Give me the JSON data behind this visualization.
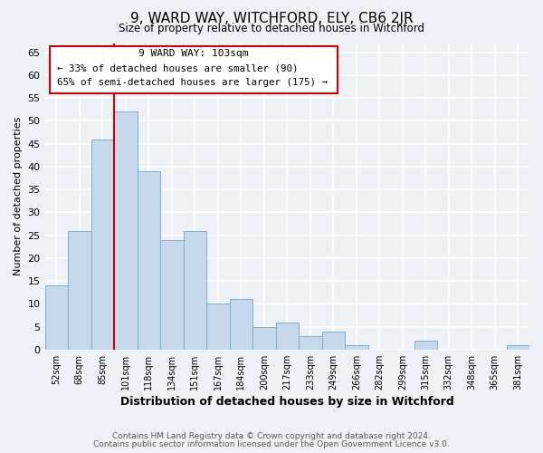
{
  "title": "9, WARD WAY, WITCHFORD, ELY, CB6 2JR",
  "subtitle": "Size of property relative to detached houses in Witchford",
  "xlabel": "Distribution of detached houses by size in Witchford",
  "ylabel": "Number of detached properties",
  "categories": [
    "52sqm",
    "68sqm",
    "85sqm",
    "101sqm",
    "118sqm",
    "134sqm",
    "151sqm",
    "167sqm",
    "184sqm",
    "200sqm",
    "217sqm",
    "233sqm",
    "249sqm",
    "266sqm",
    "282sqm",
    "299sqm",
    "315sqm",
    "332sqm",
    "348sqm",
    "365sqm",
    "381sqm"
  ],
  "values": [
    14,
    26,
    46,
    52,
    39,
    24,
    26,
    10,
    11,
    5,
    6,
    3,
    4,
    1,
    0,
    0,
    2,
    0,
    0,
    0,
    1
  ],
  "bar_color": "#c5d8ec",
  "bar_edge_color": "#7aafd4",
  "ylim": [
    0,
    67
  ],
  "yticks": [
    0,
    5,
    10,
    15,
    20,
    25,
    30,
    35,
    40,
    45,
    50,
    55,
    60,
    65
  ],
  "property_line_index": 3,
  "property_line_color": "#cc0000",
  "annotation_title": "9 WARD WAY: 103sqm",
  "annotation_line1": "← 33% of detached houses are smaller (90)",
  "annotation_line2": "65% of semi-detached houses are larger (175) →",
  "annotation_box_color": "#cc0000",
  "footnote1": "Contains HM Land Registry data © Crown copyright and database right 2024.",
  "footnote2": "Contains public sector information licensed under the Open Government Licence v3.0.",
  "background_color": "#eef2f7",
  "plot_background": "#eef2f7",
  "grid_color": "#ffffff"
}
